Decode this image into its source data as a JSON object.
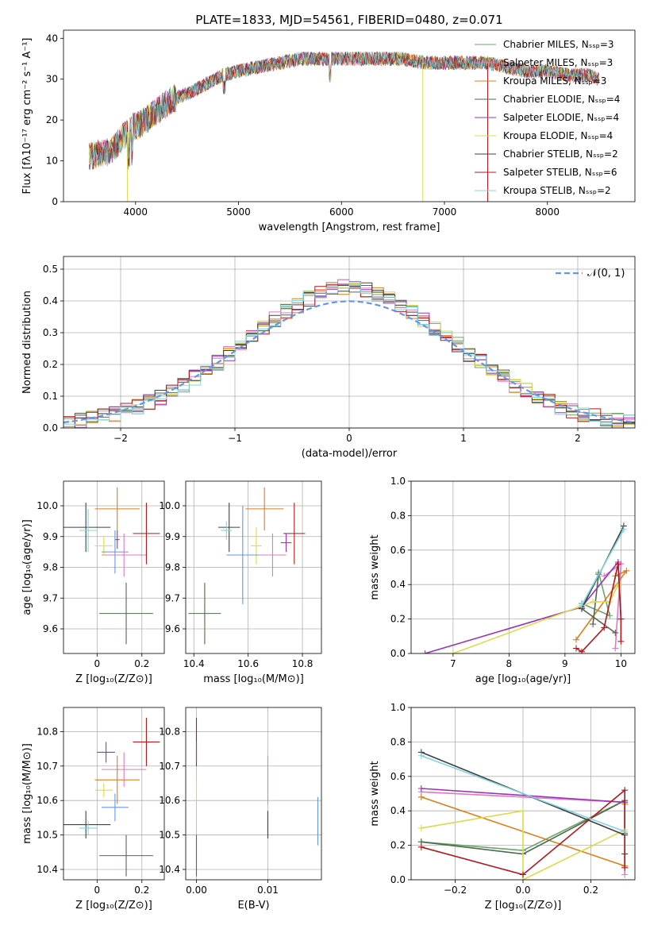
{
  "chart_data": [
    {
      "id": "spectrum",
      "type": "line",
      "title": "PLATE=1833, MJD=54561, FIBERID=0480, z=0.071",
      "xlabel": "wavelength [Angstrom, rest frame]",
      "ylabel": "Flux [fλ10⁻¹⁷ erg cm⁻² s⁻¹ A⁻¹]",
      "xlim": [
        3300,
        8850
      ],
      "ylim": [
        0,
        42
      ],
      "xticks": [
        4000,
        5000,
        6000,
        7000,
        8000
      ],
      "yticks": [
        0,
        10,
        20,
        30,
        40
      ],
      "grid": false,
      "legend_position": "top-right",
      "continuum": [
        [
          3550,
          11
        ],
        [
          3650,
          12
        ],
        [
          3750,
          12
        ],
        [
          3850,
          15
        ],
        [
          3950,
          18
        ],
        [
          4050,
          19
        ],
        [
          4150,
          21
        ],
        [
          4250,
          23
        ],
        [
          4350,
          25
        ],
        [
          4450,
          26
        ],
        [
          4550,
          27
        ],
        [
          4700,
          29
        ],
        [
          4850,
          31
        ],
        [
          5000,
          32
        ],
        [
          5200,
          33
        ],
        [
          5400,
          34
        ],
        [
          5600,
          35
        ],
        [
          5800,
          35
        ],
        [
          6000,
          35
        ],
        [
          6200,
          35
        ],
        [
          6400,
          35
        ],
        [
          6600,
          35
        ],
        [
          6800,
          34
        ],
        [
          7000,
          34
        ],
        [
          7200,
          34
        ],
        [
          7400,
          34
        ],
        [
          7600,
          33
        ],
        [
          7800,
          32
        ],
        [
          8000,
          32
        ],
        [
          8200,
          31
        ],
        [
          8400,
          31
        ],
        [
          8500,
          30
        ]
      ],
      "series": [
        {
          "name": "Chabrier MILES, Nₛₛₚ=3",
          "color": "#6aa56a"
        },
        {
          "name": "Salpeter MILES, Nₛₛₚ=3",
          "color": "#e377c2"
        },
        {
          "name": "Kroupa MILES, Nₛₛₚ=3",
          "color": "#e07b1a"
        },
        {
          "name": "Chabrier ELODIE, Nₛₛₚ=4",
          "color": "#4f6b50"
        },
        {
          "name": "Salpeter ELODIE, Nₛₛₚ=4",
          "color": "#9a33b5"
        },
        {
          "name": "Kroupa ELODIE, Nₛₛₚ=4",
          "color": "#dbdb4a"
        },
        {
          "name": "Chabrier STELIB, Nₛₛₚ=2",
          "color": "#404040"
        },
        {
          "name": "Salpeter STELIB, Nₛₛₚ=6",
          "color": "#b2181b"
        },
        {
          "name": "Kroupa STELIB, Nₛₛₚ=2",
          "color": "#7fd4e0"
        }
      ]
    },
    {
      "id": "residuals",
      "type": "line",
      "xlabel": "(data-model)/error",
      "ylabel": "Normed distribution",
      "xlim": [
        -2.5,
        2.5
      ],
      "ylim": [
        0,
        0.54
      ],
      "xticks": [
        -2,
        -1,
        0,
        1,
        2
      ],
      "xtick_labels": [
        "−2",
        "−1",
        "0",
        "1",
        "2"
      ],
      "yticks": [
        0.0,
        0.1,
        0.2,
        0.3,
        0.4,
        0.5
      ],
      "grid": true,
      "legend_position": "top-right",
      "legend": "𝒩(0, 1)",
      "normal_curve": {
        "mean": 0,
        "sigma": 1,
        "color": "#6495ed"
      },
      "histogram_bin_width": 0.1
    },
    {
      "id": "age-vs-Z",
      "type": "scatter",
      "xlabel": "Z [log₁₀(Z/Z⊙)]",
      "ylabel": "age  [log₁₀(age/yr)]",
      "xlim": [
        -0.15,
        0.3
      ],
      "ylim": [
        9.52,
        10.08
      ],
      "xticks": [
        0.0,
        0.2
      ],
      "yticks": [
        9.6,
        9.7,
        9.8,
        9.9,
        10.0
      ],
      "grid": true,
      "points": [
        {
          "x": 0.13,
          "y": 9.65,
          "xerr": 0.12,
          "yerr": 0.1,
          "color": "#4f6b50"
        },
        {
          "x": 0.12,
          "y": 9.84,
          "xerr": 0.1,
          "yerr": 0.07,
          "color": "#e377c2"
        },
        {
          "x": 0.09,
          "y": 9.99,
          "xerr": 0.1,
          "yerr": 0.07,
          "color": "#e07b1a"
        },
        {
          "x": 0.22,
          "y": 9.91,
          "xerr": 0.06,
          "yerr": 0.1,
          "color": "#b2181b"
        },
        {
          "x": -0.05,
          "y": 9.93,
          "xerr": 0.11,
          "yerr": 0.08,
          "color": "#404040"
        },
        {
          "x": -0.04,
          "y": 9.92,
          "xerr": 0.04,
          "yerr": 0.07,
          "color": "#7fd4e0"
        },
        {
          "x": 0.03,
          "y": 9.87,
          "xerr": 0.04,
          "yerr": 0.03,
          "color": "#dbdb4a"
        },
        {
          "x": 0.09,
          "y": 9.89,
          "xerr": 0.01,
          "yerr": 0.03,
          "color": "#9a33b5"
        },
        {
          "x": 0.08,
          "y": 9.85,
          "xerr": 0.06,
          "yerr": 0.07,
          "color": "#6495ed"
        }
      ]
    },
    {
      "id": "age-vs-mass",
      "type": "scatter",
      "xlabel": "mass [log₁₀(M/M⊙)]",
      "xlim": [
        10.37,
        10.87
      ],
      "ylim": [
        9.52,
        10.08
      ],
      "xticks": [
        10.4,
        10.6,
        10.8
      ],
      "yticks": [
        9.6,
        9.7,
        9.8,
        9.9,
        10.0
      ],
      "grid": true,
      "points": [
        {
          "x": 10.44,
          "y": 9.65,
          "xerr": 0.06,
          "yerr": 0.1,
          "color": "#4f6b50"
        },
        {
          "x": 10.69,
          "y": 9.84,
          "xerr": 0.05,
          "yerr": 0.07,
          "color": "#e377c2"
        },
        {
          "x": 10.66,
          "y": 9.99,
          "xerr": 0.07,
          "yerr": 0.07,
          "color": "#e07b1a"
        },
        {
          "x": 10.77,
          "y": 9.91,
          "xerr": 0.04,
          "yerr": 0.1,
          "color": "#b2181b"
        },
        {
          "x": 10.53,
          "y": 9.93,
          "xerr": 0.04,
          "yerr": 0.08,
          "color": "#404040"
        },
        {
          "x": 10.52,
          "y": 9.92,
          "xerr": 0.02,
          "yerr": 0.03,
          "color": "#7fd4e0"
        },
        {
          "x": 10.63,
          "y": 9.87,
          "xerr": 0.02,
          "yerr": 0.06,
          "color": "#dbdb4a"
        },
        {
          "x": 10.74,
          "y": 9.88,
          "xerr": 0.02,
          "yerr": 0.03,
          "color": "#9a33b5"
        },
        {
          "x": 10.58,
          "y": 9.84,
          "xerr": 0.06,
          "yerr": 0.16,
          "color": "#6495ed"
        }
      ]
    },
    {
      "id": "weight-vs-age",
      "type": "line",
      "xlabel": "age  [log₁₀(age/yr)]",
      "ylabel": "mass weight",
      "xlim": [
        6.25,
        10.25
      ],
      "ylim": [
        0,
        1.0
      ],
      "xticks": [
        7,
        8,
        9,
        10
      ],
      "yticks": [
        0.0,
        0.2,
        0.4,
        0.6,
        0.8,
        1.0
      ],
      "grid": true,
      "series": [
        {
          "color": "#6aa56a",
          "points": [
            [
              9.6,
              0.47
            ],
            [
              9.8,
              0.22
            ],
            [
              9.3,
              0.29
            ]
          ]
        },
        {
          "color": "#e377c2",
          "points": [
            [
              9.7,
              0.45
            ],
            [
              10.0,
              0.52
            ],
            [
              9.9,
              0.03
            ]
          ]
        },
        {
          "color": "#e07b1a",
          "points": [
            [
              9.2,
              0.08
            ],
            [
              10.1,
              0.48
            ],
            [
              9.9,
              0.45
            ]
          ]
        },
        {
          "color": "#4f6b50",
          "points": [
            [
              9.5,
              0.17
            ],
            [
              9.6,
              0.46
            ],
            [
              9.3,
              0.26
            ],
            [
              9.9,
              0.12
            ]
          ]
        },
        {
          "color": "#9a33b5",
          "points": [
            [
              6.5,
              0.0
            ],
            [
              9.3,
              0.27
            ],
            [
              9.95,
              0.53
            ],
            [
              10.0,
              0.2
            ]
          ]
        },
        {
          "color": "#dbdb4a",
          "points": [
            [
              7.0,
              0.0
            ],
            [
              9.5,
              0.3
            ],
            [
              9.8,
              0.3
            ],
            [
              9.95,
              0.4
            ]
          ]
        },
        {
          "color": "#404040",
          "points": [
            [
              9.3,
              0.26
            ],
            [
              10.05,
              0.74
            ]
          ]
        },
        {
          "color": "#b2181b",
          "points": [
            [
              9.2,
              0.03
            ],
            [
              9.3,
              0.01
            ],
            [
              9.7,
              0.15
            ],
            [
              9.95,
              0.52
            ],
            [
              10.0,
              0.2
            ],
            [
              10.0,
              0.07
            ]
          ]
        },
        {
          "color": "#7fd4e0",
          "points": [
            [
              9.3,
              0.28
            ],
            [
              10.05,
              0.72
            ]
          ]
        }
      ]
    },
    {
      "id": "mass-vs-Z",
      "type": "scatter",
      "xlabel": "Z [log₁₀(Z/Z⊙)]",
      "ylabel": "mass [log₁₀(M/M⊙)]",
      "xlim": [
        -0.15,
        0.3
      ],
      "ylim": [
        10.37,
        10.87
      ],
      "xticks": [
        0.0,
        0.2
      ],
      "yticks": [
        10.4,
        10.5,
        10.6,
        10.7,
        10.8
      ],
      "grid": true,
      "points": [
        {
          "x": 0.13,
          "y": 10.44,
          "xerr": 0.12,
          "yerr": 0.06,
          "color": "#4f6b50"
        },
        {
          "x": 0.12,
          "y": 10.69,
          "xerr": 0.1,
          "yerr": 0.05,
          "color": "#e377c2"
        },
        {
          "x": 0.09,
          "y": 10.66,
          "xerr": 0.1,
          "yerr": 0.07,
          "color": "#e07b1a"
        },
        {
          "x": 0.22,
          "y": 10.77,
          "xerr": 0.06,
          "yerr": 0.07,
          "color": "#b2181b"
        },
        {
          "x": -0.05,
          "y": 10.53,
          "xerr": 0.11,
          "yerr": 0.04,
          "color": "#404040"
        },
        {
          "x": -0.04,
          "y": 10.52,
          "xerr": 0.04,
          "yerr": 0.02,
          "color": "#7fd4e0"
        },
        {
          "x": 0.03,
          "y": 10.63,
          "xerr": 0.04,
          "yerr": 0.02,
          "color": "#dbdb4a"
        },
        {
          "x": 0.04,
          "y": 10.74,
          "xerr": 0.04,
          "yerr": 0.03,
          "color": "#9a33b5"
        },
        {
          "x": 0.08,
          "y": 10.58,
          "xerr": 0.06,
          "yerr": 0.04,
          "color": "#6495ed"
        }
      ]
    },
    {
      "id": "mass-vs-ebv",
      "type": "scatter",
      "xlabel": "E(B-V)",
      "xlim": [
        -0.0015,
        0.0175
      ],
      "ylim": [
        10.37,
        10.87
      ],
      "xticks": [
        0.0,
        0.01
      ],
      "xtick_labels": [
        "0.00",
        "0.01"
      ],
      "yticks": [
        10.4,
        10.5,
        10.6,
        10.7,
        10.8
      ],
      "grid": true,
      "points": [
        {
          "x": 0.0,
          "y": 10.44,
          "yerr": 0.06,
          "color": "#4f6b50"
        },
        {
          "x": 0.0,
          "y": 10.77,
          "yerr": 0.07,
          "color": "#b2181b"
        },
        {
          "x": 0.0,
          "y": 10.74,
          "yerr": 0.03,
          "color": "#9a33b5"
        },
        {
          "x": 0.0,
          "y": 10.63,
          "yerr": 0.03,
          "color": "#dbdb4a"
        },
        {
          "x": 0.01,
          "y": 10.66,
          "yerr": 0.07,
          "color": "#e377c2"
        },
        {
          "x": 0.01,
          "y": 10.52,
          "yerr": 0.03,
          "color": "#7fd4e0"
        },
        {
          "x": 0.01,
          "y": 10.53,
          "yerr": 0.04,
          "color": "#404040"
        },
        {
          "x": 0.017,
          "y": 10.54,
          "yerr": 0.07,
          "color": "#6495ed"
        }
      ]
    },
    {
      "id": "weight-vs-Z",
      "type": "line",
      "xlabel": "Z [log₁₀(Z/Z⊙)]",
      "ylabel": "mass weight",
      "xlim": [
        -0.33,
        0.33
      ],
      "ylim": [
        0,
        1.0
      ],
      "xticks": [
        -0.2,
        0.0,
        0.2
      ],
      "xtick_labels": [
        "−0.2",
        "0.0",
        "0.2"
      ],
      "yticks": [
        0.0,
        0.2,
        0.4,
        0.6,
        0.8,
        1.0
      ],
      "grid": true,
      "series": [
        {
          "color": "#6aa56a",
          "points": [
            [
              -0.3,
              0.22
            ],
            [
              0.0,
              0.17
            ],
            [
              0.3,
              0.46
            ]
          ]
        },
        {
          "color": "#e377c2",
          "points": [
            [
              -0.3,
              0.51
            ],
            [
              0.3,
              0.45
            ],
            [
              0.3,
              0.03
            ]
          ]
        },
        {
          "color": "#e07b1a",
          "points": [
            [
              -0.3,
              0.48
            ],
            [
              0.3,
              0.08
            ],
            [
              0.3,
              0.44
            ]
          ]
        },
        {
          "color": "#4f6b50",
          "points": [
            [
              -0.3,
              0.22
            ],
            [
              0.0,
              0.15
            ],
            [
              0.3,
              0.46
            ],
            [
              0.3,
              0.27
            ]
          ]
        },
        {
          "color": "#9a33b5",
          "points": [
            [
              -0.3,
              0.53
            ],
            [
              0.3,
              0.45
            ]
          ]
        },
        {
          "color": "#dbdb4a",
          "points": [
            [
              -0.3,
              0.3
            ],
            [
              0.0,
              0.4
            ],
            [
              0.0,
              0.0
            ],
            [
              0.3,
              0.29
            ]
          ]
        },
        {
          "color": "#404040",
          "points": [
            [
              -0.3,
              0.74
            ],
            [
              0.3,
              0.26
            ]
          ]
        },
        {
          "color": "#b2181b",
          "points": [
            [
              -0.3,
              0.19
            ],
            [
              0.0,
              0.03
            ],
            [
              0.3,
              0.52
            ],
            [
              0.3,
              0.15
            ],
            [
              0.3,
              0.07
            ]
          ]
        },
        {
          "color": "#7fd4e0",
          "points": [
            [
              -0.3,
              0.72
            ],
            [
              0.3,
              0.28
            ]
          ]
        }
      ]
    }
  ]
}
